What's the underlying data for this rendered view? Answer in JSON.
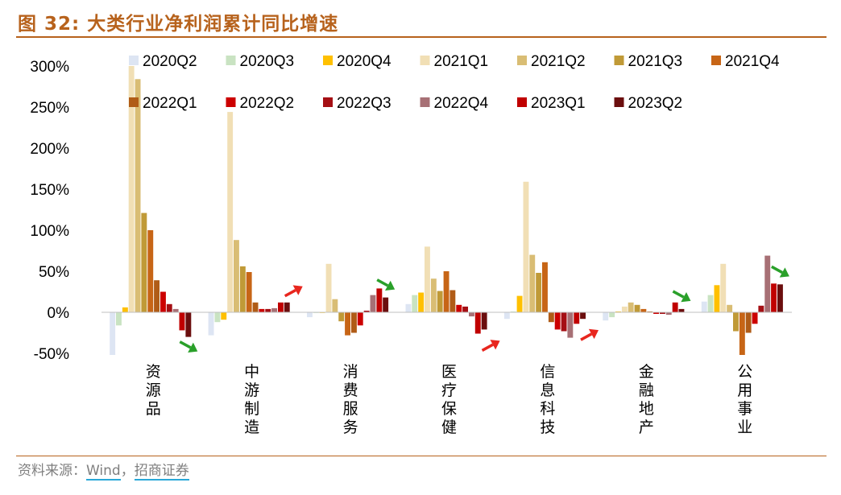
{
  "page": {
    "figure_title": "图 32:  大类行业净利润累计同比增速",
    "source_prefix": "资料来源：",
    "source_wind": "Wind",
    "source_sep": "，",
    "source_org": "招商证券"
  },
  "chart_data": {
    "type": "bar",
    "title": "大类行业净利润累计同比增速",
    "xlabel": "",
    "ylabel": "",
    "ylim": [
      -50,
      300
    ],
    "yticks": [
      300,
      250,
      200,
      150,
      100,
      50,
      0,
      -50
    ],
    "ytick_labels": [
      "300%",
      "250%",
      "200%",
      "150%",
      "100%",
      "50%",
      "0%",
      "-50%"
    ],
    "legend_position": "top",
    "categories": [
      "资源品",
      "中游制造",
      "消费服务",
      "医疗保健",
      "信息科技",
      "金融地产",
      "公用事业"
    ],
    "series": [
      {
        "name": "2020Q2",
        "color": "#dde5f3",
        "values": [
          -52,
          -28,
          -6,
          10,
          -8,
          -10,
          13
        ]
      },
      {
        "name": "2020Q3",
        "color": "#c9e3c2",
        "values": [
          -16,
          -12,
          0,
          21,
          1,
          -6,
          21
        ]
      },
      {
        "name": "2020Q4",
        "color": "#ffc000",
        "values": [
          6,
          -9,
          0,
          24,
          20,
          1,
          33
        ]
      },
      {
        "name": "2021Q1",
        "color": "#f1dfb5",
        "values": [
          300,
          244,
          59,
          80,
          159,
          7,
          59
        ]
      },
      {
        "name": "2021Q2",
        "color": "#d9bd74",
        "values": [
          284,
          88,
          16,
          41,
          70,
          12,
          9
        ]
      },
      {
        "name": "2021Q3",
        "color": "#c09a37",
        "values": [
          121,
          56,
          -11,
          26,
          48,
          9,
          -23
        ]
      },
      {
        "name": "2021Q4",
        "color": "#c76516",
        "values": [
          100,
          49,
          -28,
          50,
          61,
          4,
          -52
        ]
      },
      {
        "name": "2022Q1",
        "color": "#b05c17",
        "values": [
          39,
          12,
          -25,
          27,
          -12,
          1,
          -25
        ]
      },
      {
        "name": "2022Q2",
        "color": "#cc0000",
        "values": [
          25,
          4,
          -16,
          9,
          -21,
          -2,
          -14
        ]
      },
      {
        "name": "2022Q3",
        "color": "#a50f14",
        "values": [
          10,
          4,
          2,
          7,
          -23,
          -2,
          8
        ]
      },
      {
        "name": "2022Q4",
        "color": "#a77075",
        "values": [
          4,
          5,
          21,
          -5,
          -31,
          -3,
          69
        ]
      },
      {
        "name": "2023Q1",
        "color": "#c00000",
        "values": [
          -22,
          12,
          29,
          -26,
          -14,
          12,
          35
        ]
      },
      {
        "name": "2023Q2",
        "color": "#6b0e0e",
        "values": [
          -30,
          12,
          18,
          -21,
          -8,
          4,
          34
        ]
      }
    ],
    "arrows": [
      {
        "category": "资源品",
        "color": "#2aa02a",
        "direction": "down-right"
      },
      {
        "category": "中游制造",
        "color": "#e8261e",
        "direction": "up-right"
      },
      {
        "category": "消费服务",
        "color": "#2aa02a",
        "direction": "down-right"
      },
      {
        "category": "医疗保健",
        "color": "#e8261e",
        "direction": "up-right"
      },
      {
        "category": "信息科技",
        "color": "#e8261e",
        "direction": "up-right"
      },
      {
        "category": "金融地产",
        "color": "#2aa02a",
        "direction": "down-right"
      },
      {
        "category": "公用事业",
        "color": "#2aa02a",
        "direction": "down-right"
      }
    ]
  }
}
